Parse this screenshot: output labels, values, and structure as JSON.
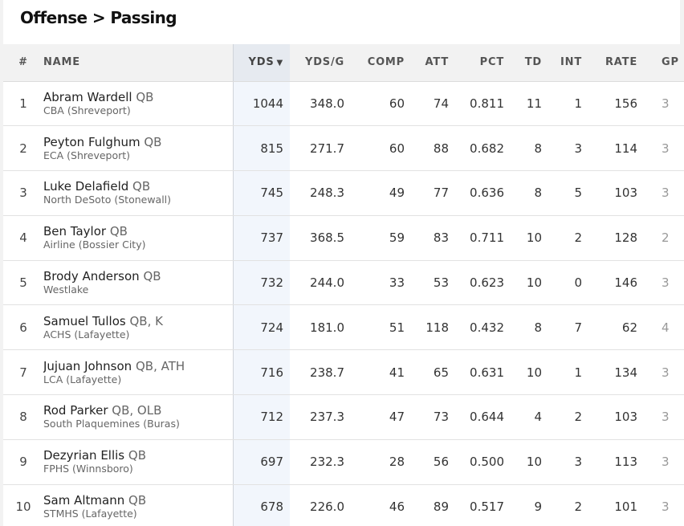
{
  "page": {
    "title": "Offense > Passing"
  },
  "table": {
    "headers": {
      "rank": "#",
      "name": "NAME",
      "yds": "YDS",
      "yds_sort_arrow": "▼",
      "ydsg": "YDS/G",
      "comp": "COMP",
      "att": "ATT",
      "pct": "PCT",
      "td": "TD",
      "int": "INT",
      "rate": "RATE",
      "gp": "GP"
    },
    "rows": [
      {
        "rank": "1",
        "name": "Abram Wardell",
        "pos": "QB",
        "school": "CBA (Shreveport)",
        "yds": "1044",
        "ydsg": "348.0",
        "comp": "60",
        "att": "74",
        "pct": "0.811",
        "td": "11",
        "int": "1",
        "rate": "156",
        "gp": "3"
      },
      {
        "rank": "2",
        "name": "Peyton Fulghum",
        "pos": "QB",
        "school": "ECA (Shreveport)",
        "yds": "815",
        "ydsg": "271.7",
        "comp": "60",
        "att": "88",
        "pct": "0.682",
        "td": "8",
        "int": "3",
        "rate": "114",
        "gp": "3"
      },
      {
        "rank": "3",
        "name": "Luke Delafield",
        "pos": "QB",
        "school": "North DeSoto (Stonewall)",
        "yds": "745",
        "ydsg": "248.3",
        "comp": "49",
        "att": "77",
        "pct": "0.636",
        "td": "8",
        "int": "5",
        "rate": "103",
        "gp": "3"
      },
      {
        "rank": "4",
        "name": "Ben Taylor",
        "pos": "QB",
        "school": "Airline (Bossier City)",
        "yds": "737",
        "ydsg": "368.5",
        "comp": "59",
        "att": "83",
        "pct": "0.711",
        "td": "10",
        "int": "2",
        "rate": "128",
        "gp": "2"
      },
      {
        "rank": "5",
        "name": "Brody Anderson",
        "pos": "QB",
        "school": "Westlake",
        "yds": "732",
        "ydsg": "244.0",
        "comp": "33",
        "att": "53",
        "pct": "0.623",
        "td": "10",
        "int": "0",
        "rate": "146",
        "gp": "3"
      },
      {
        "rank": "6",
        "name": "Samuel Tullos",
        "pos": "QB, K",
        "school": "ACHS (Lafayette)",
        "yds": "724",
        "ydsg": "181.0",
        "comp": "51",
        "att": "118",
        "pct": "0.432",
        "td": "8",
        "int": "7",
        "rate": "62",
        "gp": "4"
      },
      {
        "rank": "7",
        "name": "Jujuan Johnson",
        "pos": "QB, ATH",
        "school": "LCA (Lafayette)",
        "yds": "716",
        "ydsg": "238.7",
        "comp": "41",
        "att": "65",
        "pct": "0.631",
        "td": "10",
        "int": "1",
        "rate": "134",
        "gp": "3"
      },
      {
        "rank": "8",
        "name": "Rod Parker",
        "pos": "QB, OLB",
        "school": "South Plaquemines (Buras)",
        "yds": "712",
        "ydsg": "237.3",
        "comp": "47",
        "att": "73",
        "pct": "0.644",
        "td": "4",
        "int": "2",
        "rate": "103",
        "gp": "3"
      },
      {
        "rank": "9",
        "name": "Dezyrian Ellis",
        "pos": "QB",
        "school": "FPHS (Winnsboro)",
        "yds": "697",
        "ydsg": "232.3",
        "comp": "28",
        "att": "56",
        "pct": "0.500",
        "td": "10",
        "int": "3",
        "rate": "113",
        "gp": "3"
      },
      {
        "rank": "10",
        "name": "Sam Altmann",
        "pos": "QB",
        "school": "STMHS (Lafayette)",
        "yds": "678",
        "ydsg": "226.0",
        "comp": "46",
        "att": "89",
        "pct": "0.517",
        "td": "9",
        "int": "2",
        "rate": "101",
        "gp": "3"
      }
    ]
  }
}
